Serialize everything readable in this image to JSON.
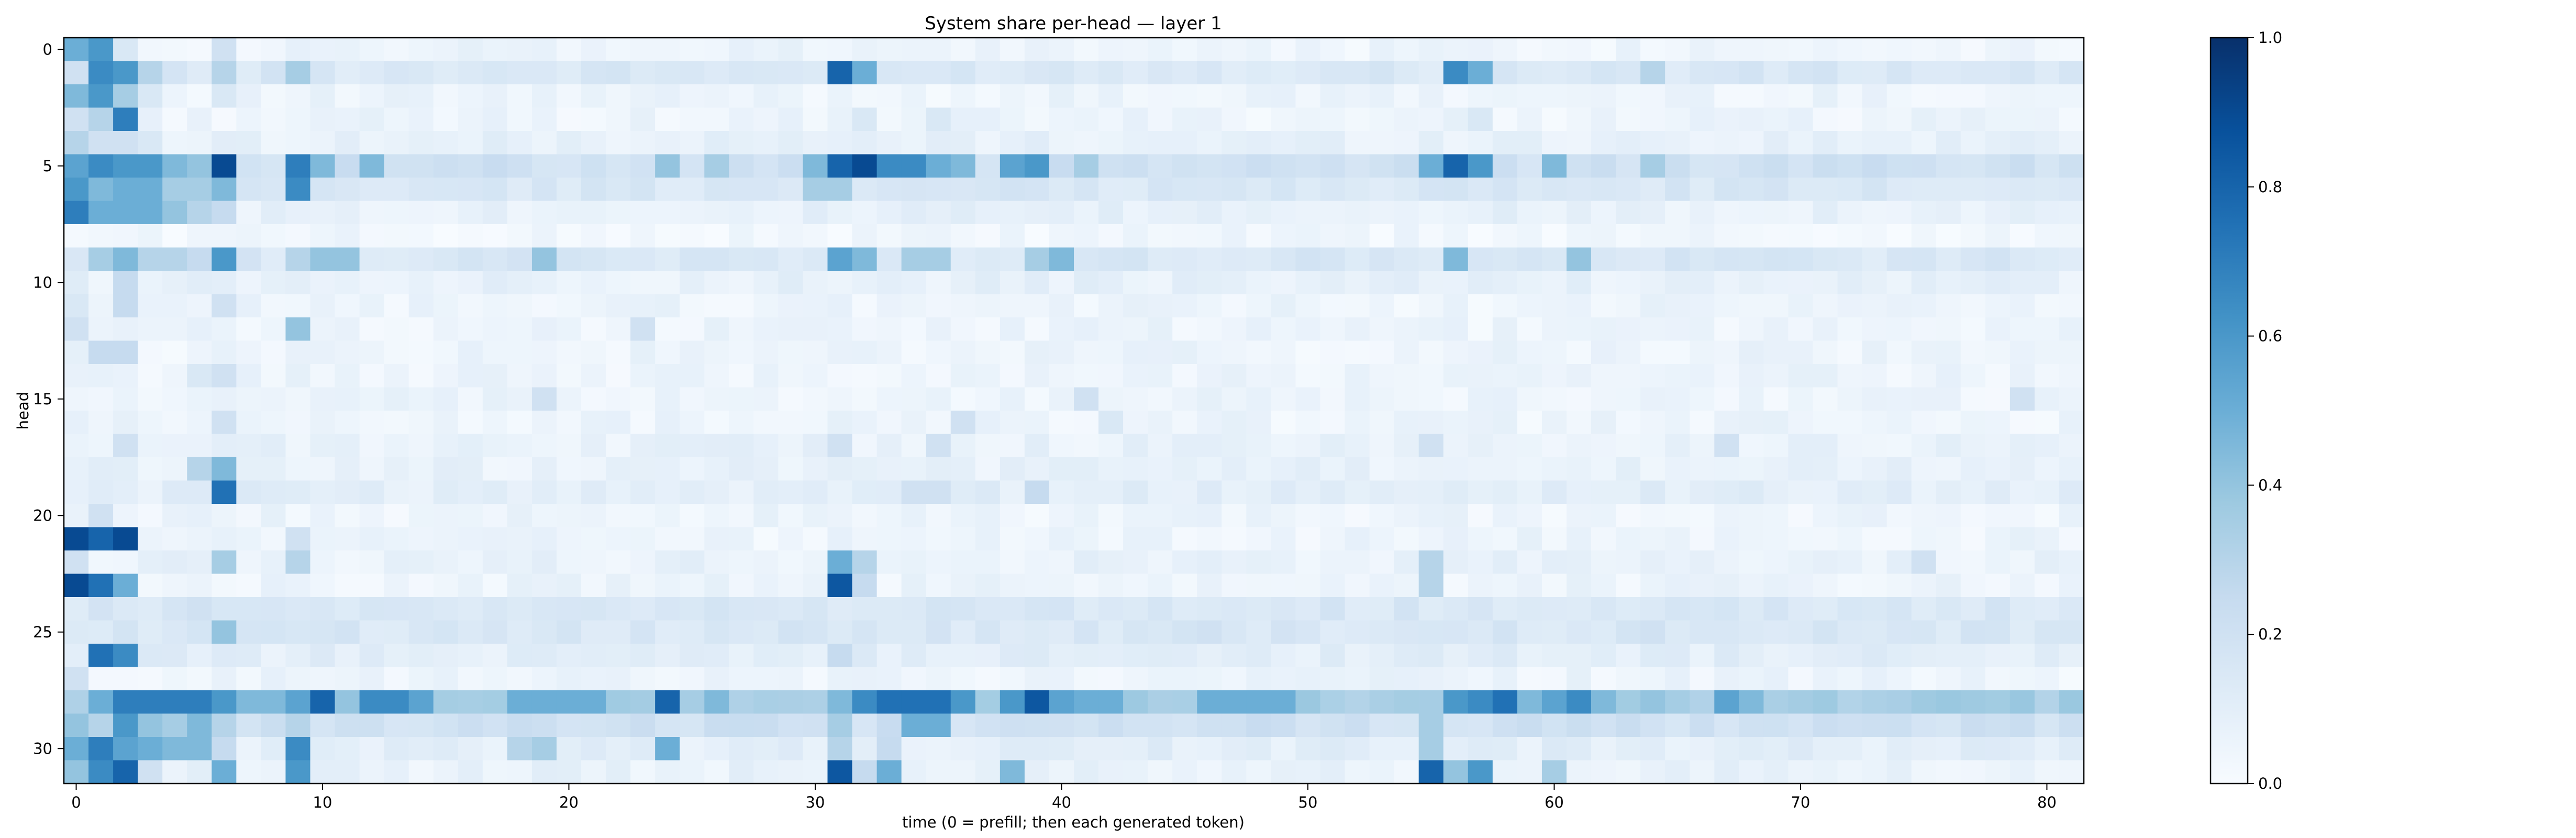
{
  "chart_data": {
    "type": "heatmap",
    "title": "System share per-head — layer 1",
    "xlabel": "time (0 = prefill; then each generated token)",
    "ylabel": "head",
    "x_ticks": [
      0,
      10,
      20,
      30,
      40,
      50,
      60,
      70,
      80
    ],
    "y_ticks": [
      0,
      5,
      10,
      15,
      20,
      25,
      30
    ],
    "n_time": 82,
    "n_heads": 32,
    "colormap": "Blues",
    "colorbar": {
      "vmin": 0.0,
      "vmax": 1.0,
      "ticks": [
        "0.0",
        "0.2",
        "0.4",
        "0.6",
        "0.8",
        "1.0"
      ]
    },
    "colors": {
      "low": "#f7fbff",
      "high": "#08306b"
    },
    "heads": [
      {
        "head": 0,
        "baseline": 0.05,
        "cells": {
          "0": 0.5,
          "1": 0.6,
          "2": 0.15,
          "6": 0.2
        }
      },
      {
        "head": 1,
        "baseline": 0.15,
        "cells": {
          "0": 0.2,
          "1": 0.65,
          "2": 0.6,
          "3": 0.3,
          "6": 0.3,
          "9": 0.35,
          "31": 0.8,
          "32": 0.5,
          "56": 0.65,
          "57": 0.5,
          "64": 0.3
        }
      },
      {
        "head": 2,
        "baseline": 0.05,
        "cells": {
          "0": 0.45,
          "1": 0.6,
          "2": 0.35,
          "3": 0.15,
          "6": 0.15
        }
      },
      {
        "head": 3,
        "baseline": 0.05,
        "cells": {
          "0": 0.2,
          "1": 0.3,
          "2": 0.7,
          "32": 0.15,
          "35": 0.15,
          "57": 0.15
        }
      },
      {
        "head": 4,
        "baseline": 0.08,
        "cells": {
          "0": 0.3,
          "1": 0.2,
          "2": 0.2,
          "3": 0.15
        }
      },
      {
        "head": 5,
        "baseline": 0.2,
        "cells": {
          "0": 0.55,
          "1": 0.65,
          "2": 0.6,
          "3": 0.6,
          "4": 0.45,
          "5": 0.4,
          "6": 0.9,
          "9": 0.7,
          "10": 0.45,
          "12": 0.45,
          "24": 0.4,
          "26": 0.35,
          "30": 0.45,
          "31": 0.8,
          "32": 0.9,
          "33": 0.65,
          "34": 0.65,
          "35": 0.5,
          "36": 0.45,
          "38": 0.55,
          "39": 0.6,
          "41": 0.35,
          "55": 0.5,
          "56": 0.8,
          "57": 0.6,
          "60": 0.45,
          "64": 0.35
        }
      },
      {
        "head": 6,
        "baseline": 0.15,
        "cells": {
          "0": 0.6,
          "1": 0.45,
          "2": 0.5,
          "3": 0.5,
          "4": 0.35,
          "5": 0.35,
          "6": 0.45,
          "9": 0.65,
          "30": 0.35,
          "31": 0.35
        }
      },
      {
        "head": 7,
        "baseline": 0.08,
        "cells": {
          "0": 0.7,
          "1": 0.5,
          "2": 0.5,
          "3": 0.5,
          "4": 0.4,
          "5": 0.3,
          "6": 0.25
        }
      },
      {
        "head": 8,
        "baseline": 0.03,
        "cells": {}
      },
      {
        "head": 9,
        "baseline": 0.15,
        "cells": {
          "1": 0.35,
          "2": 0.45,
          "3": 0.3,
          "4": 0.3,
          "5": 0.25,
          "6": 0.6,
          "9": 0.3,
          "10": 0.4,
          "11": 0.4,
          "19": 0.4,
          "31": 0.55,
          "32": 0.45,
          "34": 0.35,
          "35": 0.35,
          "39": 0.35,
          "40": 0.45,
          "56": 0.45,
          "61": 0.4
        }
      },
      {
        "head": 10,
        "baseline": 0.08,
        "cells": {
          "2": 0.25
        }
      },
      {
        "head": 11,
        "baseline": 0.05,
        "cells": {
          "0": 0.15,
          "2": 0.25,
          "6": 0.2
        }
      },
      {
        "head": 12,
        "baseline": 0.05,
        "cells": {
          "0": 0.2,
          "9": 0.4,
          "23": 0.2
        }
      },
      {
        "head": 13,
        "baseline": 0.05,
        "cells": {
          "1": 0.25,
          "2": 0.25
        }
      },
      {
        "head": 14,
        "baseline": 0.05,
        "cells": {
          "5": 0.15,
          "6": 0.2
        }
      },
      {
        "head": 15,
        "baseline": 0.05,
        "cells": {
          "19": 0.2,
          "41": 0.2,
          "79": 0.2
        }
      },
      {
        "head": 16,
        "baseline": 0.05,
        "cells": {
          "6": 0.2,
          "36": 0.2,
          "42": 0.15
        }
      },
      {
        "head": 17,
        "baseline": 0.07,
        "cells": {
          "2": 0.2,
          "31": 0.2,
          "35": 0.2,
          "55": 0.2,
          "67": 0.2
        }
      },
      {
        "head": 18,
        "baseline": 0.07,
        "cells": {
          "5": 0.3,
          "6": 0.45
        }
      },
      {
        "head": 19,
        "baseline": 0.1,
        "cells": {
          "6": 0.75,
          "39": 0.25,
          "34": 0.2,
          "35": 0.2
        }
      },
      {
        "head": 20,
        "baseline": 0.05,
        "cells": {
          "1": 0.2
        }
      },
      {
        "head": 21,
        "baseline": 0.05,
        "cells": {
          "0": 0.9,
          "1": 0.8,
          "2": 0.9,
          "9": 0.2
        }
      },
      {
        "head": 22,
        "baseline": 0.07,
        "cells": {
          "0": 0.2,
          "6": 0.35,
          "9": 0.3,
          "31": 0.5,
          "32": 0.3,
          "55": 0.3,
          "75": 0.2
        }
      },
      {
        "head": 23,
        "baseline": 0.05,
        "cells": {
          "0": 0.9,
          "1": 0.75,
          "2": 0.5,
          "31": 0.85,
          "32": 0.25,
          "55": 0.3
        }
      },
      {
        "head": 24,
        "baseline": 0.15,
        "cells": {
          "5": 0.2
        }
      },
      {
        "head": 25,
        "baseline": 0.15,
        "cells": {
          "6": 0.4,
          "46": 0.2,
          "64": 0.2
        }
      },
      {
        "head": 26,
        "baseline": 0.1,
        "cells": {
          "1": 0.75,
          "2": 0.65,
          "31": 0.25
        }
      },
      {
        "head": 27,
        "baseline": 0.05,
        "cells": {
          "0": 0.2
        }
      },
      {
        "head": 28,
        "baseline": 0.35,
        "cells": {
          "1": 0.5,
          "2": 0.7,
          "3": 0.7,
          "4": 0.7,
          "5": 0.7,
          "6": 0.6,
          "7": 0.45,
          "8": 0.45,
          "9": 0.55,
          "10": 0.8,
          "11": 0.4,
          "12": 0.65,
          "13": 0.65,
          "14": 0.55,
          "18": 0.5,
          "19": 0.5,
          "20": 0.5,
          "21": 0.5,
          "24": 0.8,
          "25": 0.35,
          "26": 0.45,
          "31": 0.45,
          "32": 0.65,
          "33": 0.75,
          "34": 0.75,
          "35": 0.75,
          "36": 0.6,
          "38": 0.6,
          "39": 0.85,
          "40": 0.55,
          "41": 0.5,
          "42": 0.5,
          "46": 0.5,
          "47": 0.5,
          "48": 0.5,
          "49": 0.5,
          "55": 0.35,
          "56": 0.6,
          "57": 0.65,
          "58": 0.75,
          "59": 0.45,
          "60": 0.55,
          "61": 0.65,
          "62": 0.45,
          "64": 0.4,
          "67": 0.55,
          "68": 0.45
        }
      },
      {
        "head": 29,
        "baseline": 0.2,
        "cells": {
          "0": 0.4,
          "1": 0.3,
          "2": 0.6,
          "3": 0.4,
          "4": 0.35,
          "5": 0.45,
          "6": 0.3,
          "9": 0.3,
          "31": 0.35,
          "34": 0.5,
          "35": 0.5,
          "55": 0.35
        }
      },
      {
        "head": 30,
        "baseline": 0.1,
        "cells": {
          "0": 0.5,
          "1": 0.7,
          "2": 0.55,
          "3": 0.5,
          "4": 0.45,
          "5": 0.45,
          "6": 0.25,
          "9": 0.65,
          "18": 0.3,
          "19": 0.35,
          "24": 0.5,
          "31": 0.3,
          "33": 0.25,
          "55": 0.35
        }
      },
      {
        "head": 31,
        "baseline": 0.07,
        "cells": {
          "0": 0.4,
          "1": 0.65,
          "2": 0.8,
          "3": 0.2,
          "6": 0.5,
          "9": 0.6,
          "31": 0.85,
          "32": 0.25,
          "33": 0.5,
          "38": 0.45,
          "55": 0.8,
          "56": 0.4,
          "57": 0.6,
          "60": 0.35
        }
      }
    ]
  }
}
